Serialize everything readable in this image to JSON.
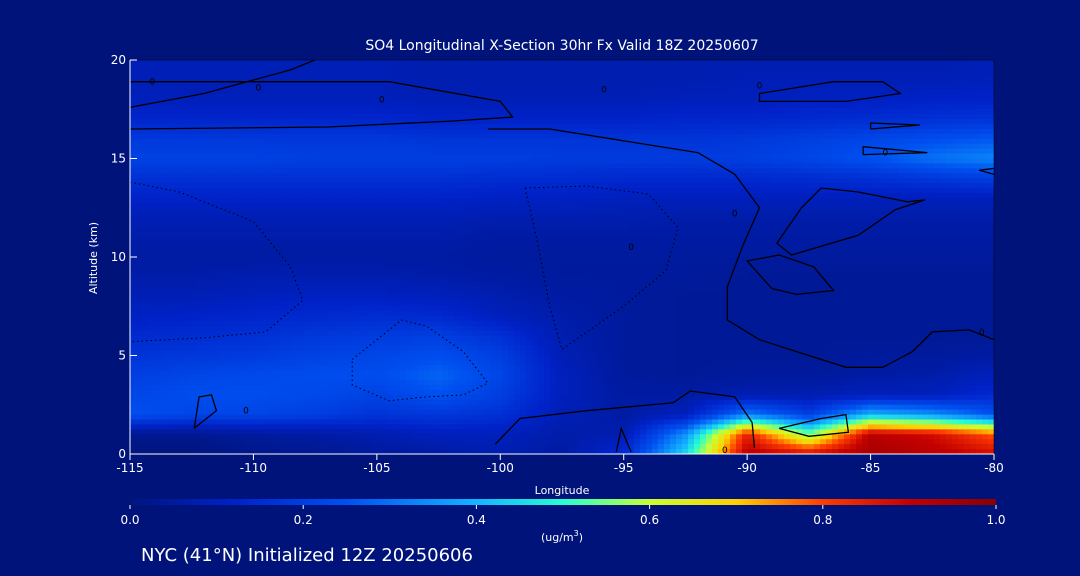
{
  "chart_data": {
    "type": "heatmap",
    "title": "SO4 Longitudinal X-Section 30hr  Fx Valid 18Z 20250607",
    "xlabel": "Longitude",
    "ylabel": "Altitude (km)",
    "xlim": [
      -115,
      -80
    ],
    "ylim": [
      0,
      20
    ],
    "x_ticks": [
      -115,
      -110,
      -105,
      -100,
      -95,
      -90,
      -85,
      -80
    ],
    "x_tick_labels": [
      "-115",
      "-110",
      "-105",
      "-100",
      "-95",
      "-90",
      "-85",
      "-80"
    ],
    "y_ticks": [
      0,
      5,
      10,
      15,
      20
    ],
    "y_tick_labels": [
      "0",
      "5",
      "10",
      "15",
      "20"
    ],
    "colorbar": {
      "min": 0.0,
      "max": 1.0,
      "tick_values": [
        0.0,
        0.2,
        0.4,
        0.6,
        0.8,
        1.0
      ],
      "tick_labels": [
        "0.0",
        "0.2",
        "0.4",
        "0.6",
        "0.8",
        "1.0"
      ],
      "units_label": "(ug/m",
      "units_superscript": "3",
      "units_close": ")",
      "stops": [
        [
          0.0,
          "#00157e"
        ],
        [
          0.12,
          "#0022c8"
        ],
        [
          0.25,
          "#0050f0"
        ],
        [
          0.4,
          "#14b4ff"
        ],
        [
          0.5,
          "#28ffd0"
        ],
        [
          0.6,
          "#c8ff32"
        ],
        [
          0.7,
          "#ffd000"
        ],
        [
          0.8,
          "#ff3c00"
        ],
        [
          0.9,
          "#c40000"
        ],
        [
          1.0,
          "#880000"
        ]
      ]
    },
    "longitudes": [
      -115,
      -112.5,
      -110,
      -107.5,
      -105,
      -102.5,
      -100,
      -97.5,
      -95,
      -92.5,
      -90,
      -87.5,
      -85,
      -82.5,
      -80
    ],
    "altitudes_km": [
      0,
      1,
      2,
      3,
      4,
      5,
      6,
      7,
      8,
      9,
      10,
      11,
      12,
      13,
      14,
      15,
      16,
      17,
      18,
      19,
      20
    ],
    "values": [
      [
        0.0,
        0.0,
        0.02,
        0.03,
        0.05,
        0.06,
        0.08,
        0.06,
        0.15,
        0.45,
        0.92,
        0.88,
        0.95,
        0.92,
        0.88
      ],
      [
        0.03,
        0.03,
        0.05,
        0.06,
        0.08,
        0.1,
        0.1,
        0.07,
        0.08,
        0.35,
        0.85,
        0.55,
        0.92,
        0.88,
        0.78
      ],
      [
        0.25,
        0.22,
        0.22,
        0.2,
        0.17,
        0.18,
        0.16,
        0.09,
        0.06,
        0.1,
        0.32,
        0.2,
        0.4,
        0.35,
        0.25
      ],
      [
        0.22,
        0.24,
        0.24,
        0.23,
        0.21,
        0.25,
        0.2,
        0.1,
        0.06,
        0.06,
        0.08,
        0.08,
        0.1,
        0.1,
        0.14
      ],
      [
        0.2,
        0.22,
        0.23,
        0.24,
        0.24,
        0.28,
        0.22,
        0.1,
        0.05,
        0.04,
        0.05,
        0.05,
        0.06,
        0.07,
        0.1
      ],
      [
        0.17,
        0.18,
        0.19,
        0.21,
        0.22,
        0.24,
        0.2,
        0.09,
        0.05,
        0.04,
        0.04,
        0.04,
        0.05,
        0.05,
        0.06
      ],
      [
        0.14,
        0.15,
        0.16,
        0.18,
        0.19,
        0.2,
        0.16,
        0.08,
        0.05,
        0.04,
        0.04,
        0.04,
        0.04,
        0.04,
        0.04
      ],
      [
        0.11,
        0.12,
        0.13,
        0.14,
        0.15,
        0.14,
        0.1,
        0.07,
        0.05,
        0.04,
        0.04,
        0.04,
        0.04,
        0.04,
        0.04
      ],
      [
        0.09,
        0.09,
        0.1,
        0.11,
        0.11,
        0.1,
        0.08,
        0.06,
        0.05,
        0.04,
        0.04,
        0.04,
        0.04,
        0.04,
        0.04
      ],
      [
        0.07,
        0.07,
        0.08,
        0.08,
        0.08,
        0.07,
        0.06,
        0.05,
        0.05,
        0.05,
        0.04,
        0.04,
        0.04,
        0.04,
        0.04
      ],
      [
        0.06,
        0.06,
        0.06,
        0.06,
        0.06,
        0.06,
        0.05,
        0.05,
        0.05,
        0.05,
        0.05,
        0.05,
        0.05,
        0.05,
        0.05
      ],
      [
        0.07,
        0.07,
        0.07,
        0.07,
        0.07,
        0.07,
        0.06,
        0.06,
        0.06,
        0.06,
        0.06,
        0.06,
        0.06,
        0.06,
        0.06
      ],
      [
        0.09,
        0.09,
        0.09,
        0.09,
        0.09,
        0.09,
        0.08,
        0.08,
        0.08,
        0.07,
        0.07,
        0.07,
        0.07,
        0.07,
        0.07
      ],
      [
        0.12,
        0.12,
        0.12,
        0.12,
        0.12,
        0.12,
        0.11,
        0.11,
        0.1,
        0.1,
        0.1,
        0.1,
        0.1,
        0.1,
        0.1
      ],
      [
        0.16,
        0.16,
        0.16,
        0.16,
        0.16,
        0.16,
        0.15,
        0.15,
        0.14,
        0.14,
        0.14,
        0.15,
        0.16,
        0.18,
        0.2
      ],
      [
        0.21,
        0.21,
        0.21,
        0.2,
        0.2,
        0.2,
        0.2,
        0.19,
        0.19,
        0.19,
        0.2,
        0.22,
        0.25,
        0.3,
        0.33
      ],
      [
        0.18,
        0.18,
        0.18,
        0.18,
        0.18,
        0.17,
        0.17,
        0.17,
        0.17,
        0.17,
        0.18,
        0.2,
        0.22,
        0.24,
        0.26
      ],
      [
        0.13,
        0.13,
        0.13,
        0.13,
        0.13,
        0.12,
        0.12,
        0.12,
        0.12,
        0.13,
        0.13,
        0.14,
        0.15,
        0.16,
        0.17
      ],
      [
        0.1,
        0.1,
        0.1,
        0.1,
        0.1,
        0.09,
        0.09,
        0.09,
        0.09,
        0.1,
        0.1,
        0.11,
        0.11,
        0.12,
        0.12
      ],
      [
        0.09,
        0.09,
        0.09,
        0.09,
        0.09,
        0.08,
        0.08,
        0.08,
        0.08,
        0.08,
        0.09,
        0.09,
        0.09,
        0.09,
        0.1
      ],
      [
        0.09,
        0.09,
        0.09,
        0.09,
        0.09,
        0.08,
        0.08,
        0.08,
        0.08,
        0.08,
        0.08,
        0.08,
        0.08,
        0.08,
        0.09
      ]
    ],
    "contour_level_label": "0",
    "contours_solid": [
      [
        [
          -115,
          17.6
        ],
        [
          -112,
          18.3
        ],
        [
          -108.5,
          19.5
        ],
        [
          -107.5,
          20
        ]
      ],
      [
        [
          -115,
          16.5
        ],
        [
          -107,
          16.6
        ],
        [
          -102,
          16.9
        ],
        [
          -99.5,
          17.1
        ],
        [
          -100,
          17.9
        ],
        [
          -104.5,
          18.9
        ],
        [
          -110,
          18.9
        ],
        [
          -115,
          18.9
        ]
      ],
      [
        [
          -100.5,
          16.5
        ],
        [
          -98,
          16.5
        ],
        [
          -95,
          15.9
        ],
        [
          -92,
          15.3
        ],
        [
          -90.5,
          14.2
        ],
        [
          -89.5,
          12.5
        ],
        [
          -90.2,
          10.5
        ],
        [
          -90.8,
          8.5
        ],
        [
          -90.8,
          6.8
        ],
        [
          -89.5,
          5.8
        ],
        [
          -88,
          5.2
        ],
        [
          -86,
          4.4
        ],
        [
          -84.5,
          4.4
        ],
        [
          -83.3,
          5.2
        ],
        [
          -82.5,
          6.2
        ],
        [
          -81,
          6.3
        ],
        [
          -80,
          5.8
        ]
      ],
      [
        [
          -89.5,
          18.3
        ],
        [
          -86.5,
          18.9
        ],
        [
          -84.5,
          18.9
        ],
        [
          -83.8,
          18.3
        ],
        [
          -86,
          17.9
        ],
        [
          -89.5,
          17.9
        ],
        [
          -89.5,
          18.3
        ]
      ],
      [
        [
          -85,
          16.5
        ],
        [
          -83,
          16.7
        ],
        [
          -85,
          16.8
        ],
        [
          -85,
          16.5
        ]
      ],
      [
        [
          -85.3,
          15.2
        ],
        [
          -82.7,
          15.3
        ],
        [
          -85.3,
          15.6
        ],
        [
          -85.3,
          15.2
        ]
      ],
      [
        [
          -80,
          14.2
        ],
        [
          -80.6,
          14.4
        ],
        [
          -80,
          14.5
        ]
      ],
      [
        [
          -88.8,
          10.7
        ],
        [
          -87.8,
          12.5
        ],
        [
          -87,
          13.5
        ],
        [
          -85.5,
          13.3
        ],
        [
          -83.5,
          12.8
        ],
        [
          -82.8,
          12.9
        ],
        [
          -84,
          12.4
        ],
        [
          -85.5,
          11.1
        ],
        [
          -88.2,
          10.1
        ],
        [
          -88.8,
          10.7
        ]
      ],
      [
        [
          -89,
          8.4
        ],
        [
          -88,
          8.1
        ],
        [
          -86.5,
          8.3
        ],
        [
          -87.3,
          9.5
        ],
        [
          -88.7,
          10.1
        ],
        [
          -90,
          9.8
        ],
        [
          -89,
          8.4
        ]
      ],
      [
        [
          -112.4,
          1.3
        ],
        [
          -112.2,
          2.9
        ],
        [
          -111.7,
          3.0
        ],
        [
          -111.5,
          2.2
        ],
        [
          -111.9,
          1.8
        ],
        [
          -112.4,
          1.3
        ]
      ],
      [
        [
          -100.2,
          0.5
        ],
        [
          -99.2,
          1.8
        ],
        [
          -96.5,
          2.2
        ],
        [
          -93,
          2.6
        ],
        [
          -92.3,
          3.2
        ],
        [
          -90.5,
          2.9
        ],
        [
          -89.8,
          1.6
        ],
        [
          -89.7,
          0.3
        ]
      ],
      [
        [
          -95.3,
          0.1
        ],
        [
          -95.1,
          1.3
        ],
        [
          -94.7,
          0.1
        ]
      ],
      [
        [
          -88.7,
          1.3
        ],
        [
          -87,
          1.8
        ],
        [
          -86,
          2.0
        ],
        [
          -85.9,
          1.1
        ],
        [
          -87.5,
          0.9
        ],
        [
          -88.7,
          1.3
        ]
      ]
    ],
    "contours_dashed": [
      [
        [
          -115,
          13.8
        ],
        [
          -113,
          13.3
        ],
        [
          -110,
          11.8
        ],
        [
          -108.5,
          9.5
        ],
        [
          -108,
          7.8
        ],
        [
          -109.5,
          6.2
        ],
        [
          -112,
          5.9
        ],
        [
          -115,
          5.7
        ]
      ],
      [
        [
          -99,
          13.5
        ],
        [
          -96.5,
          13.6
        ],
        [
          -94,
          13.2
        ],
        [
          -92.8,
          11.5
        ],
        [
          -93.3,
          9.3
        ],
        [
          -95,
          7.5
        ],
        [
          -96.5,
          6.2
        ],
        [
          -97.5,
          5.3
        ],
        [
          -98,
          7.5
        ],
        [
          -98.5,
          10.8
        ],
        [
          -99,
          13.5
        ]
      ],
      [
        [
          -106,
          4.8
        ],
        [
          -104,
          6.8
        ],
        [
          -103,
          6.5
        ],
        [
          -101.5,
          5.2
        ],
        [
          -100.5,
          3.6
        ],
        [
          -101.5,
          3.0
        ],
        [
          -103,
          2.9
        ],
        [
          -104.5,
          2.7
        ],
        [
          -106,
          3.5
        ],
        [
          -106,
          4.8
        ]
      ]
    ],
    "contour_labels": [
      {
        "x": -114.1,
        "y": 18.9
      },
      {
        "x": -109.8,
        "y": 18.6
      },
      {
        "x": -104.8,
        "y": 18.0
      },
      {
        "x": -95.8,
        "y": 18.5
      },
      {
        "x": -89.5,
        "y": 18.7
      },
      {
        "x": -84.4,
        "y": 15.3
      },
      {
        "x": -90.5,
        "y": 12.2
      },
      {
        "x": -94.7,
        "y": 10.5
      },
      {
        "x": -110.3,
        "y": 2.2
      },
      {
        "x": -80.5,
        "y": 6.2
      },
      {
        "x": -90.9,
        "y": 0.2
      }
    ]
  },
  "footer": {
    "location_text": "NYC (41°N) Initialized 12Z 20250606"
  }
}
